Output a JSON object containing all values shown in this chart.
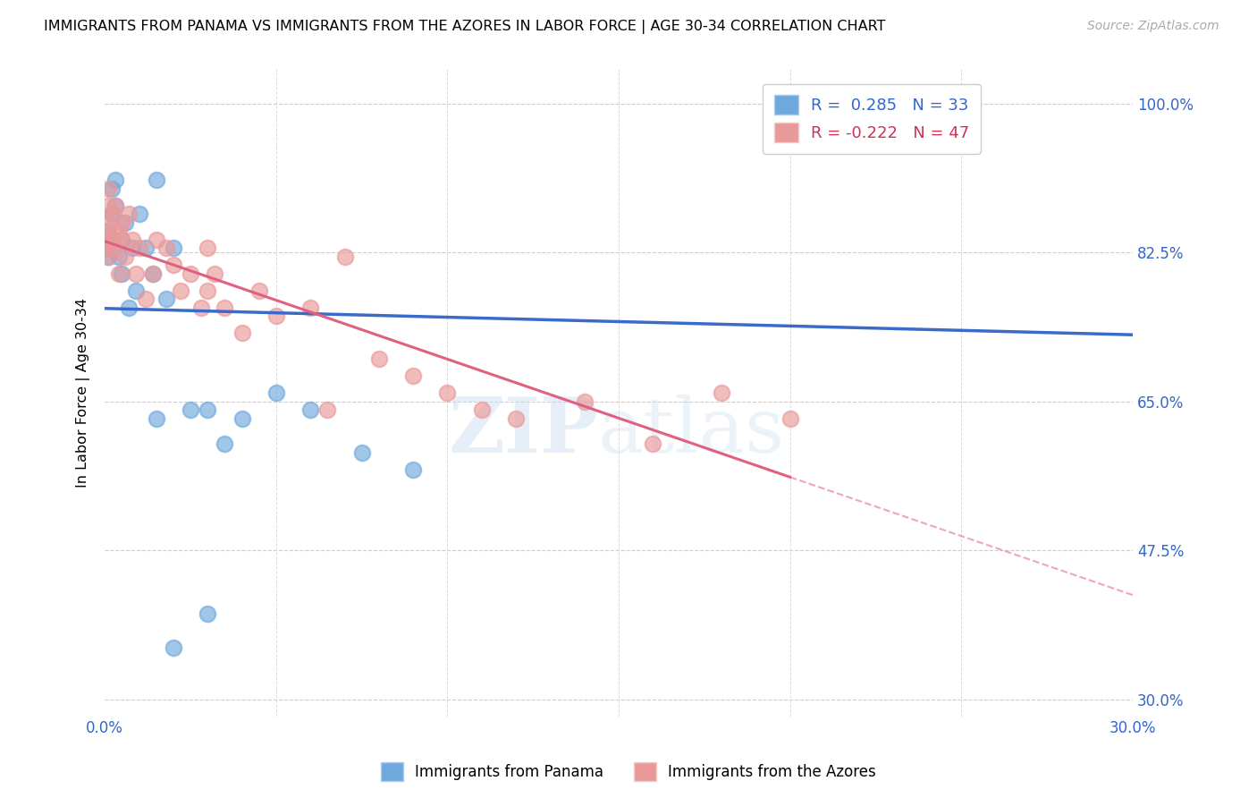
{
  "title": "IMMIGRANTS FROM PANAMA VS IMMIGRANTS FROM THE AZORES IN LABOR FORCE | AGE 30-34 CORRELATION CHART",
  "source": "Source: ZipAtlas.com",
  "ylabel": "In Labor Force | Age 30-34",
  "xlim": [
    0.0,
    0.3
  ],
  "ylim": [
    0.28,
    1.04
  ],
  "xticks": [
    0.0,
    0.05,
    0.1,
    0.15,
    0.2,
    0.25,
    0.3
  ],
  "xticklabels": [
    "0.0%",
    "",
    "",
    "",
    "",
    "",
    "30.0%"
  ],
  "yticks": [
    0.3,
    0.475,
    0.65,
    0.825,
    1.0
  ],
  "yticklabels": [
    "30.0%",
    "47.5%",
    "65.0%",
    "82.5%",
    "100.0%"
  ],
  "r_panama": 0.285,
  "n_panama": 33,
  "r_azores": -0.222,
  "n_azores": 47,
  "color_panama": "#6fa8dc",
  "color_azores": "#ea9999",
  "color_panama_line": "#3a6bc9",
  "color_azores_line": "#e06080",
  "watermark_zip": "ZIP",
  "watermark_atlas": "atlas",
  "panama_x": [
    0.001,
    0.001,
    0.001,
    0.001,
    0.002,
    0.002,
    0.003,
    0.003,
    0.004,
    0.005,
    0.005,
    0.006,
    0.007,
    0.008,
    0.009,
    0.01,
    0.012,
    0.014,
    0.015,
    0.018,
    0.02,
    0.025,
    0.03,
    0.035,
    0.04,
    0.05,
    0.06,
    0.075,
    0.09,
    0.02,
    0.03,
    0.015,
    0.25
  ],
  "panama_y": [
    0.83,
    0.85,
    0.84,
    0.82,
    0.9,
    0.87,
    0.91,
    0.88,
    0.82,
    0.84,
    0.8,
    0.86,
    0.76,
    0.83,
    0.78,
    0.87,
    0.83,
    0.8,
    0.91,
    0.77,
    0.83,
    0.64,
    0.64,
    0.6,
    0.63,
    0.66,
    0.64,
    0.59,
    0.57,
    0.36,
    0.4,
    0.63,
    1.0
  ],
  "azores_x": [
    0.001,
    0.001,
    0.001,
    0.001,
    0.001,
    0.001,
    0.001,
    0.002,
    0.002,
    0.003,
    0.003,
    0.004,
    0.004,
    0.005,
    0.005,
    0.006,
    0.007,
    0.008,
    0.009,
    0.01,
    0.012,
    0.014,
    0.015,
    0.018,
    0.02,
    0.022,
    0.025,
    0.028,
    0.03,
    0.032,
    0.035,
    0.04,
    0.045,
    0.05,
    0.06,
    0.07,
    0.08,
    0.09,
    0.1,
    0.11,
    0.12,
    0.14,
    0.16,
    0.18,
    0.2,
    0.03,
    0.065
  ],
  "azores_y": [
    0.83,
    0.85,
    0.88,
    0.9,
    0.84,
    0.86,
    0.82,
    0.87,
    0.84,
    0.88,
    0.83,
    0.85,
    0.8,
    0.86,
    0.84,
    0.82,
    0.87,
    0.84,
    0.8,
    0.83,
    0.77,
    0.8,
    0.84,
    0.83,
    0.81,
    0.78,
    0.8,
    0.76,
    0.83,
    0.8,
    0.76,
    0.73,
    0.78,
    0.75,
    0.76,
    0.82,
    0.7,
    0.68,
    0.66,
    0.64,
    0.63,
    0.65,
    0.6,
    0.66,
    0.63,
    0.78,
    0.64
  ]
}
